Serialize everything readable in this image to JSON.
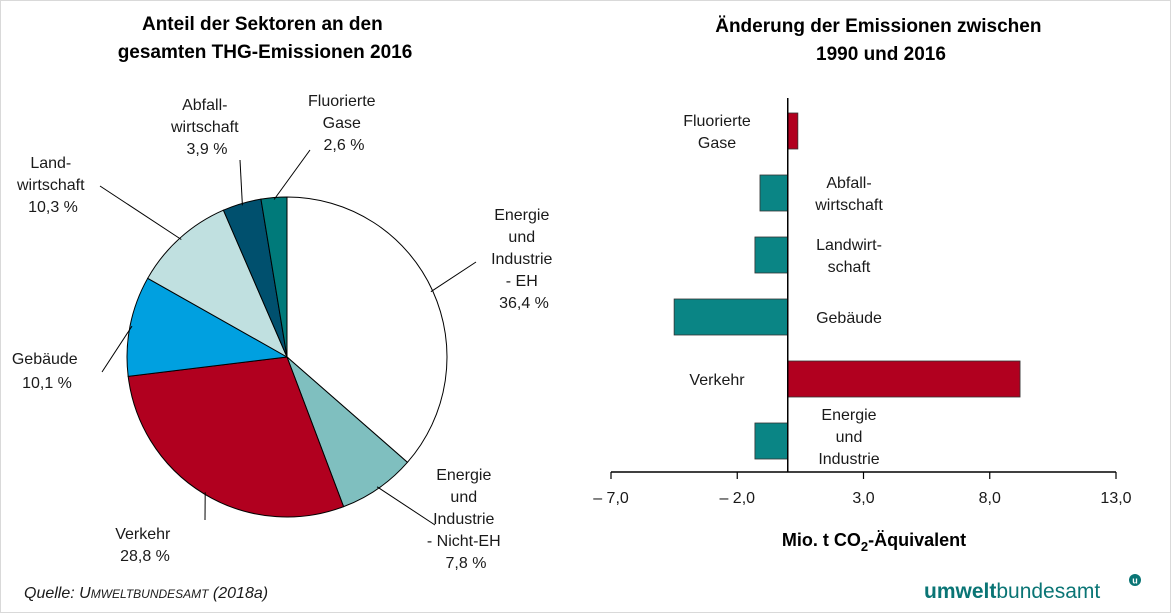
{
  "chart_data": [
    {
      "type": "pie",
      "title": [
        "Anteil der Sektoren an den",
        "gesamten THG-Emissionen 2016"
      ],
      "slices": [
        {
          "name": "Energie und Industrie - EH",
          "label": [
            "Energie",
            "und",
            "Industrie",
            "- EH"
          ],
          "value_label": "36,4 %",
          "value": 36.4,
          "color": "#ffffff"
        },
        {
          "name": "Energie und Industrie - Nicht-EH",
          "label": [
            "Energie",
            "und",
            "Industrie",
            "- Nicht-EH"
          ],
          "value_label": "7,8 %",
          "value": 7.8,
          "color": "#7fbfbf"
        },
        {
          "name": "Verkehr",
          "label": [
            "Verkehr"
          ],
          "value_label": "28,8 %",
          "value": 28.8,
          "color": "#b1001f"
        },
        {
          "name": "Gebäude",
          "label": [
            "Gebäude"
          ],
          "value_label": "10,1 %",
          "value": 10.1,
          "color": "#00a0e0"
        },
        {
          "name": "Landwirtschaft",
          "label": [
            "Land-",
            "wirtschaft"
          ],
          "value_label": "10,3 %",
          "value": 10.3,
          "color": "#c0e0e0"
        },
        {
          "name": "Abfallwirtschaft",
          "label": [
            "Abfall-",
            "wirtschaft"
          ],
          "value_label": "3,9 %",
          "value": 3.9,
          "color": "#00506e"
        },
        {
          "name": "Fluorierte Gase",
          "label": [
            "Fluorierte",
            "Gase"
          ],
          "value_label": "2,6 %",
          "value": 2.6,
          "color": "#007a7a"
        }
      ]
    },
    {
      "type": "bar",
      "orientation": "horizontal",
      "title": [
        "Änderung der Emissionen zwischen",
        "1990 und 2016"
      ],
      "xlabel": {
        "prefix": "Mio. t CO",
        "sub": "2",
        "suffix": "-Äquivalent"
      },
      "xlim": [
        -7.0,
        13.0
      ],
      "xticks": [
        -7.0,
        -2.0,
        3.0,
        8.0,
        13.0
      ],
      "xtick_labels": [
        "– 7,0",
        "– 2,0",
        "3,0",
        "8,0",
        "13,0"
      ],
      "categories": [
        {
          "name": "Fluorierte Gase",
          "label": [
            "Fluorierte",
            "Gase"
          ],
          "value": 0.4,
          "color": "#b1001f",
          "label_side": "left"
        },
        {
          "name": "Abfallwirtschaft",
          "label": [
            "Abfall-",
            "wirtschaft"
          ],
          "value": -1.1,
          "color": "#0a8585",
          "label_side": "right"
        },
        {
          "name": "Landwirtschaft",
          "label": [
            "Landwirt-",
            "schaft"
          ],
          "value": -1.3,
          "color": "#0a8585",
          "label_side": "right"
        },
        {
          "name": "Gebäude",
          "label": [
            "Gebäude"
          ],
          "value": -4.5,
          "color": "#0a8585",
          "label_side": "right"
        },
        {
          "name": "Verkehr",
          "label": [
            "Verkehr"
          ],
          "value": 9.2,
          "color": "#b1001f",
          "label_side": "left"
        },
        {
          "name": "Energie und Industrie",
          "label": [
            "Energie",
            "und",
            "Industrie"
          ],
          "value": -1.3,
          "color": "#0a8585",
          "label_side": "right"
        }
      ]
    }
  ],
  "source": {
    "prefix": "Quelle: U",
    "smallcaps": "MWELTBUNDESAMT",
    "suffix": " (2018a)"
  },
  "logo": {
    "bold": "umwelt",
    "regular": "bundesamt",
    "mark": "u"
  }
}
